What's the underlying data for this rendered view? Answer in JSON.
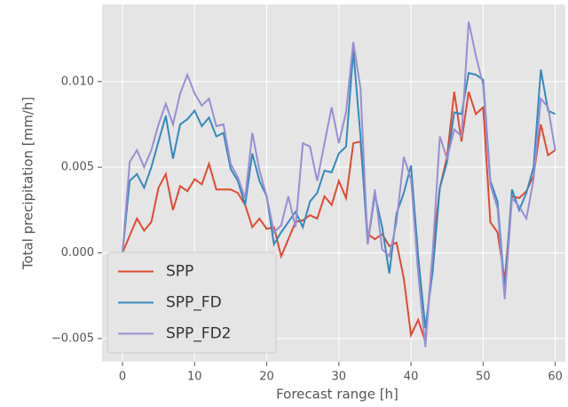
{
  "chart_data": {
    "type": "line",
    "x_label": "Forecast range [h]",
    "y_label": "Total precipitation [mm/h]",
    "x": [
      0,
      1,
      2,
      3,
      4,
      5,
      6,
      7,
      8,
      9,
      10,
      11,
      12,
      13,
      14,
      15,
      16,
      17,
      18,
      19,
      20,
      21,
      22,
      23,
      24,
      25,
      26,
      27,
      28,
      29,
      30,
      31,
      32,
      33,
      34,
      35,
      36,
      37,
      38,
      39,
      40,
      41,
      42,
      43,
      44,
      45,
      46,
      47,
      48,
      49,
      50,
      51,
      52,
      53,
      54,
      55,
      56,
      57,
      58,
      59,
      60
    ],
    "series": [
      {
        "name": "SPP",
        "color": "#E24A33",
        "values": [
          0,
          0.001,
          0.002,
          0.0013,
          0.0018,
          0.0038,
          0.0046,
          0.0025,
          0.0039,
          0.0036,
          0.0043,
          0.004,
          0.0052,
          0.0037,
          0.0037,
          0.0037,
          0.0035,
          0.0028,
          0.0015,
          0.002,
          0.0014,
          0.0015,
          -0.0002,
          0.0008,
          0.0018,
          0.0019,
          0.0022,
          0.002,
          0.0033,
          0.0028,
          0.0042,
          0.0032,
          0.0064,
          0.0065,
          0.0011,
          0.0008,
          0.0011,
          0.0004,
          0.0006,
          -0.0015,
          -0.0048,
          -0.0039,
          -0.0052,
          0,
          0.0038,
          0.0056,
          0.0094,
          0.0065,
          0.0094,
          0.0081,
          0.0085,
          0.0018,
          0.0012,
          -0.0016,
          0.0033,
          0.0032,
          0.0036,
          0.0045,
          0.0075,
          0.0057,
          0.006
        ]
      },
      {
        "name": "SPP_FD",
        "color": "#348ABD",
        "values": [
          0,
          0.0042,
          0.0046,
          0.0038,
          0.005,
          0.0065,
          0.008,
          0.0055,
          0.0075,
          0.0078,
          0.0083,
          0.0074,
          0.0079,
          0.0068,
          0.007,
          0.0049,
          0.0042,
          0.0028,
          0.0058,
          0.0042,
          0.0033,
          0.0005,
          0.0012,
          0.0018,
          0.0024,
          0.0015,
          0.003,
          0.0035,
          0.0048,
          0.0047,
          0.0058,
          0.0062,
          0.0118,
          0.0068,
          0.0005,
          0.0034,
          0.0015,
          -0.0012,
          0.0023,
          0.0035,
          0.0051,
          -0.0002,
          -0.0044,
          -0.0011,
          0.0038,
          0.0053,
          0.0082,
          0.0081,
          0.0105,
          0.0104,
          0.0101,
          0.0042,
          0.003,
          -0.0022,
          0.0037,
          0.0025,
          0.0035,
          0.005,
          0.0107,
          0.0083,
          0.0081
        ]
      },
      {
        "name": "SPP_FD2",
        "color": "#988ED5",
        "values": [
          0,
          0.0053,
          0.006,
          0.005,
          0.006,
          0.0075,
          0.0087,
          0.0075,
          0.0093,
          0.0104,
          0.0093,
          0.0086,
          0.009,
          0.0074,
          0.0075,
          0.0052,
          0.0044,
          0.0032,
          0.007,
          0.0048,
          0.0033,
          0.0012,
          0.0016,
          0.0033,
          0.0015,
          0.0064,
          0.0062,
          0.0042,
          0.0064,
          0.0085,
          0.0064,
          0.0082,
          0.0123,
          0.0096,
          0.0005,
          0.0037,
          0.0002,
          -0.0002,
          0.0018,
          0.0056,
          0.0043,
          -0.0012,
          -0.0055,
          0,
          0.0068,
          0.0055,
          0.0072,
          0.0068,
          0.0135,
          0.0115,
          0.0098,
          0.004,
          0.0026,
          -0.0027,
          0.0032,
          0.0027,
          0.002,
          0.0043,
          0.009,
          0.0085,
          0.006
        ]
      }
    ],
    "xlim": [
      -2.83,
      61.4
    ],
    "ylim": [
      -0.00635,
      0.0145
    ],
    "xticks": [
      0,
      10,
      20,
      30,
      40,
      50,
      60
    ],
    "yticks": [
      {
        "value": -0.005,
        "label": "−0.005"
      },
      {
        "value": 0,
        "label": "0.000"
      },
      {
        "value": 0.005,
        "label": "0.005"
      },
      {
        "value": 0.01,
        "label": "0.010"
      }
    ],
    "grid": true,
    "legend": "lower left"
  }
}
